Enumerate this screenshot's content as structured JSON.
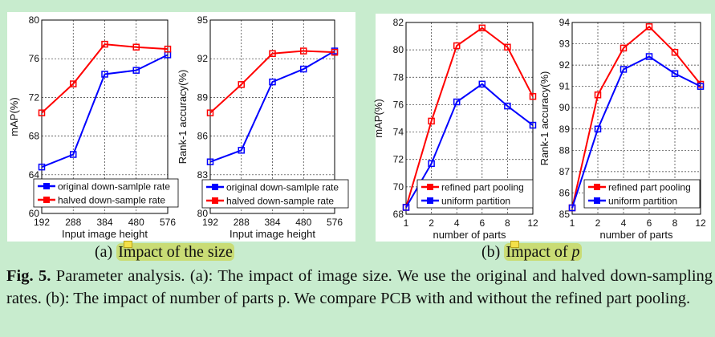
{
  "subcaptions": {
    "a_label": "(a)",
    "a_text": "Impact of the size",
    "b_label": "(b)",
    "b_text": "Impact of",
    "b_var": "p"
  },
  "caption": {
    "fig": "Fig. 5.",
    "text": "Parameter analysis. (a): The impact of image size. We use the original and halved down-sampling rates. (b): The impact of number of parts p. We compare PCB with and without the refined part pooling."
  },
  "colors": {
    "background": "#c8ecce",
    "highlight": "#c9dc75",
    "red": "#ff0000",
    "blue": "#0000ff"
  },
  "chart_data": [
    {
      "type": "line",
      "xlabel": "Input image height",
      "ylabel": "mAP(%)",
      "categories": [
        "192",
        "288",
        "384",
        "480",
        "576"
      ],
      "ylim": [
        60,
        80
      ],
      "yticks": [
        "60",
        "64",
        "68",
        "72",
        "76",
        "80"
      ],
      "grid": true,
      "legend": "bottom",
      "series": [
        {
          "name": "original down-samlple rate",
          "color": "#0000ff",
          "values": [
            64.8,
            66.1,
            74.4,
            74.8,
            76.4
          ]
        },
        {
          "name": "halved down-sample rate",
          "color": "#ff0000",
          "values": [
            70.4,
            73.4,
            77.5,
            77.2,
            77.0
          ]
        }
      ]
    },
    {
      "type": "line",
      "xlabel": "Input image height",
      "ylabel": "Rank-1 accuracy(%)",
      "categories": [
        "192",
        "288",
        "384",
        "480",
        "576"
      ],
      "ylim": [
        80,
        95
      ],
      "yticks": [
        "80",
        "83",
        "86",
        "89",
        "92",
        "95"
      ],
      "grid": true,
      "legend": "bottom",
      "series": [
        {
          "name": "original down-samlple rate",
          "color": "#0000ff",
          "values": [
            84.0,
            84.9,
            90.2,
            91.2,
            92.6
          ]
        },
        {
          "name": "halved down-sample rate",
          "color": "#ff0000",
          "values": [
            87.8,
            90.0,
            92.4,
            92.6,
            92.5
          ]
        }
      ]
    },
    {
      "type": "line",
      "xlabel": "number of parts",
      "ylabel": "mAP(%)",
      "categories": [
        "1",
        "2",
        "4",
        "6",
        "8",
        "12"
      ],
      "ylim": [
        68,
        82
      ],
      "yticks": [
        "68",
        "70",
        "72",
        "74",
        "76",
        "78",
        "80",
        "82"
      ],
      "grid": true,
      "legend": "bottom-right",
      "series": [
        {
          "name": "refined part pooling",
          "color": "#ff0000",
          "values": [
            68.5,
            74.8,
            80.3,
            81.6,
            80.2,
            76.6
          ]
        },
        {
          "name": "uniform partition",
          "color": "#0000ff",
          "values": [
            68.5,
            71.7,
            76.2,
            77.5,
            75.9,
            74.5
          ]
        }
      ]
    },
    {
      "type": "line",
      "xlabel": "number of parts",
      "ylabel": "Rank-1 accuracy(%)",
      "categories": [
        "1",
        "2",
        "4",
        "6",
        "8",
        "12"
      ],
      "ylim": [
        85,
        94
      ],
      "yticks": [
        "85",
        "86",
        "87",
        "88",
        "89",
        "90",
        "91",
        "92",
        "93",
        "94"
      ],
      "grid": true,
      "legend": "bottom-right",
      "series": [
        {
          "name": "refined part pooling",
          "color": "#ff0000",
          "values": [
            85.3,
            90.6,
            92.8,
            93.8,
            92.6,
            91.1
          ]
        },
        {
          "name": "uniform partition",
          "color": "#0000ff",
          "values": [
            85.3,
            89.0,
            91.8,
            92.4,
            91.6,
            91.0
          ]
        }
      ]
    }
  ]
}
